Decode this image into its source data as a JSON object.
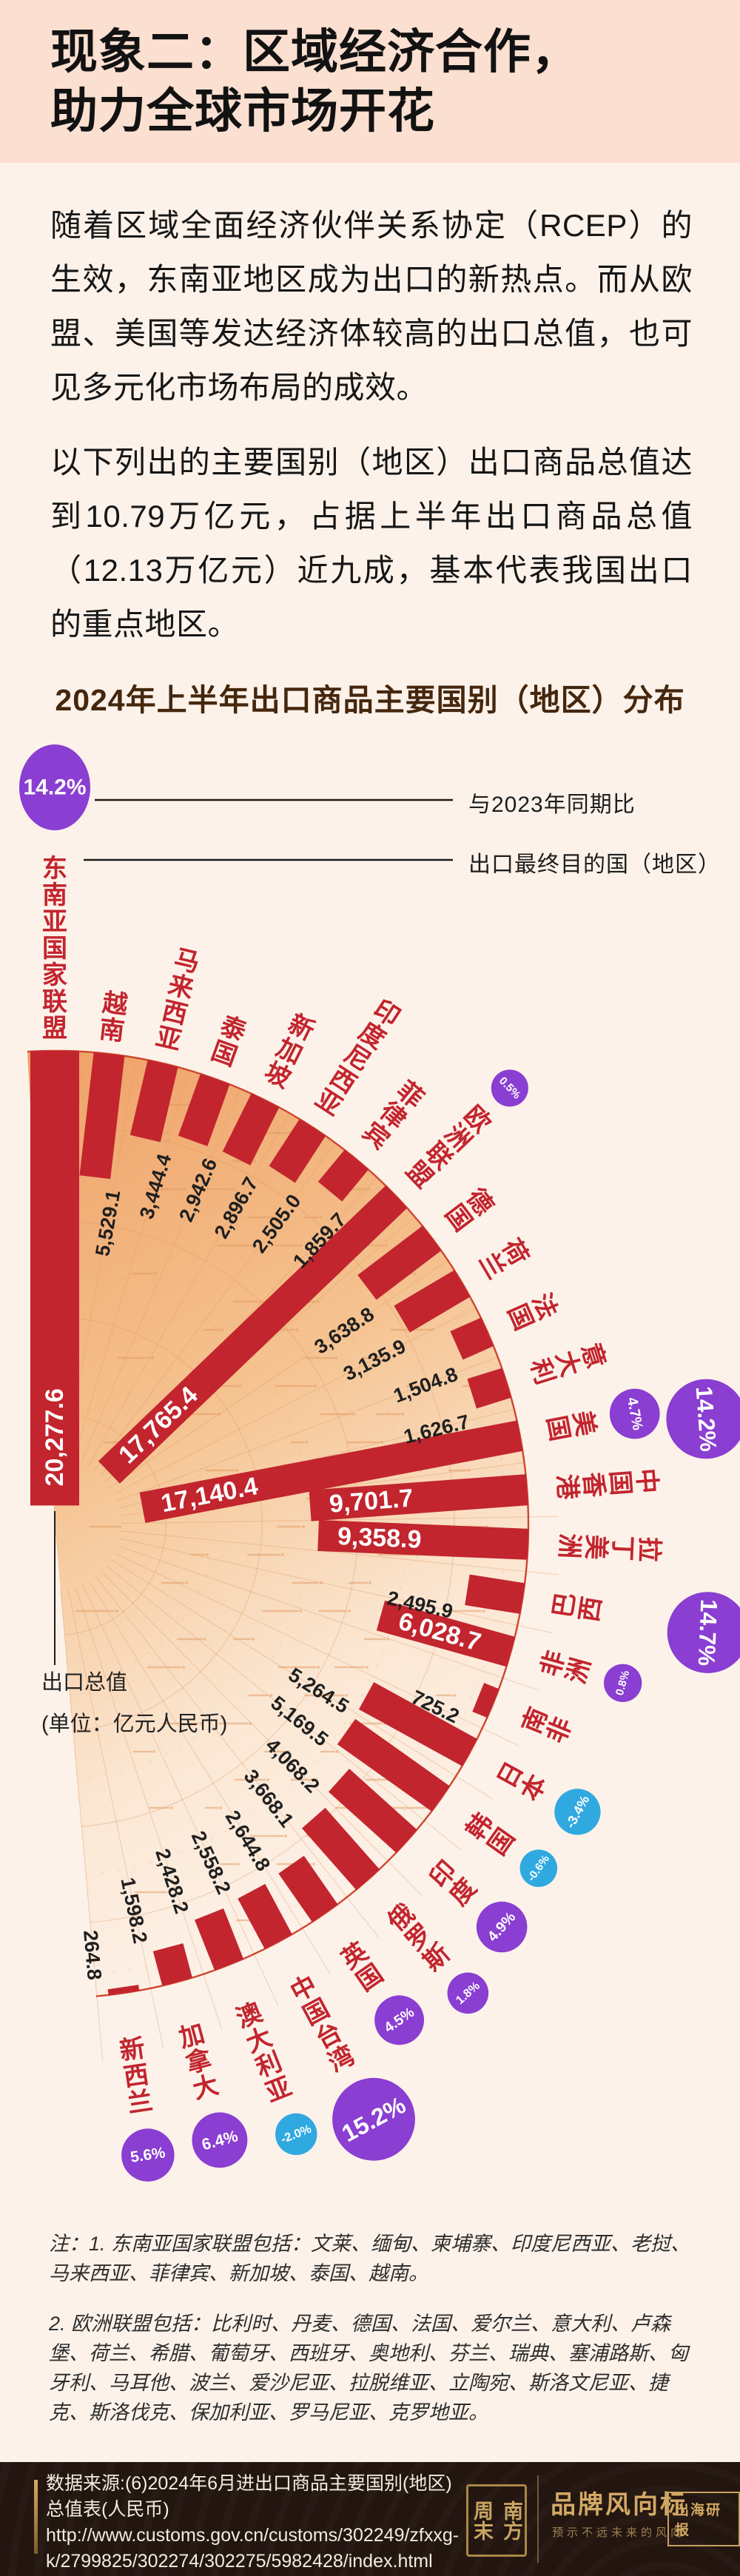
{
  "page": {
    "title": "现象二：区域经济合作，\n助力全球市场开花"
  },
  "paragraphs": {
    "p1": "随着区域全面经济伙伴关系协定（RCEP）的生效，东南亚地区成为出口的新热点。而从欧盟、美国等发达经济体较高的出口总值，也可见多元化市场布局的成效。",
    "p2": "以下列出的主要国别（地区）出口商品总值达到10.79万亿元，占据上半年出口商品总值（12.13万亿元）近九成，基本代表我国出口的重点地区。"
  },
  "chart": {
    "title": "2024年上半年出口商品主要国别（地区）分布",
    "legend": {
      "sample_label": "与2023年同期比",
      "bar_label": "出口最终目的国（地区）"
    },
    "axis_note": "出口总值\n(单位：亿元人民币)"
  },
  "chart_data": {
    "type": "radial-bar",
    "title": "2024年上半年出口商品主要国别（地区）分布",
    "value_unit": "亿元人民币",
    "yoy_note": "与2023年同期比",
    "category_note": "出口最终目的国（地区）",
    "series": [
      {
        "name": "东南亚国家联盟",
        "value": 20277.6,
        "yoy_pct": 14.2
      },
      {
        "name": "越南",
        "value": 5529.1,
        "yoy_pct": null
      },
      {
        "name": "马来西亚",
        "value": 3444.4,
        "yoy_pct": null
      },
      {
        "name": "泰国",
        "value": 2942.6,
        "yoy_pct": null
      },
      {
        "name": "新加坡",
        "value": 2896.7,
        "yoy_pct": null
      },
      {
        "name": "印度尼西亚",
        "value": 2505.0,
        "yoy_pct": null
      },
      {
        "name": "菲律宾",
        "value": 1859.7,
        "yoy_pct": null
      },
      {
        "name": "欧洲联盟",
        "value": 17765.4,
        "yoy_pct": 0.5
      },
      {
        "name": "德国",
        "value": 3638.8,
        "yoy_pct": null
      },
      {
        "name": "荷兰",
        "value": 3135.9,
        "yoy_pct": null
      },
      {
        "name": "法国",
        "value": 1504.8,
        "yoy_pct": null
      },
      {
        "name": "意大利",
        "value": 1626.7,
        "yoy_pct": null
      },
      {
        "name": "美国",
        "value": 17140.4,
        "yoy_pct": 4.7
      },
      {
        "name": "中国香港",
        "value": 9701.7,
        "yoy_pct": 14.2
      },
      {
        "name": "拉丁美洲",
        "value": 9358.9,
        "yoy_pct": 14.7
      },
      {
        "name": "巴西",
        "value": 2495.9,
        "yoy_pct": null
      },
      {
        "name": "非洲",
        "value": 6028.7,
        "yoy_pct": 0.8
      },
      {
        "name": "南非",
        "value": 725.2,
        "yoy_pct": null
      },
      {
        "name": "日本",
        "value": 5264.5,
        "yoy_pct": -3.4
      },
      {
        "name": "韩国",
        "value": 5169.5,
        "yoy_pct": -0.6
      },
      {
        "name": "印度",
        "value": 4068.2,
        "yoy_pct": 4.9
      },
      {
        "name": "俄罗斯",
        "value": 3668.1,
        "yoy_pct": 1.8
      },
      {
        "name": "英国",
        "value": 2644.8,
        "yoy_pct": 4.5
      },
      {
        "name": "中国台湾",
        "value": 2558.2,
        "yoy_pct": 15.2
      },
      {
        "name": "澳大利亚",
        "value": 2428.2,
        "yoy_pct": -2.0
      },
      {
        "name": "加拿大",
        "value": 1598.2,
        "yoy_pct": 6.4
      },
      {
        "name": "新西兰",
        "value": 264.8,
        "yoy_pct": 5.6
      }
    ],
    "colors": {
      "bar_red": "#c2252e",
      "label_red": "#c2252e",
      "positive_purple": "#8a3ed2",
      "negative_blue": "#2fa9e0",
      "wedge_orange": "#efa268",
      "rim_red": "#cf4630"
    }
  },
  "notes": {
    "note1": "注：1. 东南亚国家联盟包括：文莱、缅甸、柬埔寨、印度尼西亚、老挝、马来西亚、菲律宾、新加坡、泰国、越南。",
    "note2": "2. 欧洲联盟包括：比利时、丹麦、德国、法国、爱尔兰、意大利、卢森堡、荷兰、希腊、葡萄牙、西班牙、奥地利、芬兰、瑞典、塞浦路斯、匈牙利、马耳他、波兰、爱沙尼亚、拉脱维亚、立陶宛、斯洛文尼亚、捷克、斯洛伐克、保加利亚、罗马尼亚、克罗地亚。"
  },
  "footer": {
    "source_text": "数据来源:(6)2024年6月进出口商品主要国别(地区)总值表(人民币)",
    "source_url": "http://www.customs.gov.cn/customs/302249/zfxxg-k/2799825/302274/302275/5982428/index.html",
    "seal_col_left": "周末",
    "seal_col_right": "南方",
    "brand": "品牌风向标",
    "brand_tagline": "预示不远未来的风向",
    "badge": "出海研报"
  }
}
